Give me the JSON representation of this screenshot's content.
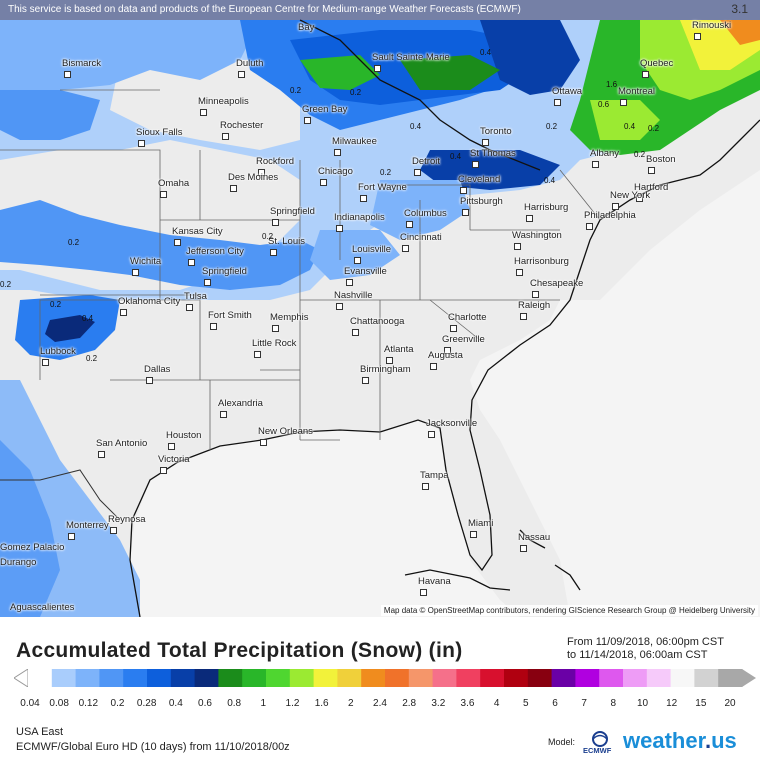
{
  "banner": "This service is based on data and products of the European Centre for Medium-range Weather Forecasts (ECMWF)",
  "attribution": "Map data © OpenStreetMap contributors, rendering GIScience Research Group @ Heidelberg University",
  "top_value": "3.1",
  "cities": [
    {
      "name": "Bay",
      "dot": false
    },
    {
      "name": "Rimouski",
      "dot": true
    },
    {
      "name": "Bismarck",
      "dot": true
    },
    {
      "name": "Duluth",
      "dot": true
    },
    {
      "name": "Sault Sainte Marie",
      "dot": true
    },
    {
      "name": "Quebec",
      "dot": true
    },
    {
      "name": "Ottawa",
      "dot": true
    },
    {
      "name": "Montreal",
      "dot": true
    },
    {
      "name": "Minneapolis",
      "dot": true
    },
    {
      "name": "Green Bay",
      "dot": true
    },
    {
      "name": "Rochester",
      "dot": true
    },
    {
      "name": "Sioux Falls",
      "dot": true
    },
    {
      "name": "Milwaukee",
      "dot": true
    },
    {
      "name": "Toronto",
      "dot": true
    },
    {
      "name": "St Thomas",
      "dot": true
    },
    {
      "name": "Albany",
      "dot": true
    },
    {
      "name": "Boston",
      "dot": true
    },
    {
      "name": "Rockford",
      "dot": true
    },
    {
      "name": "Detroit",
      "dot": true
    },
    {
      "name": "Des Moines",
      "dot": true
    },
    {
      "name": "Chicago",
      "dot": true
    },
    {
      "name": "Omaha",
      "dot": true
    },
    {
      "name": "Cleveland",
      "dot": true
    },
    {
      "name": "Hartford",
      "dot": true
    },
    {
      "name": "Fort Wayne",
      "dot": true
    },
    {
      "name": "New York",
      "dot": true
    },
    {
      "name": "Pittsburgh",
      "dot": true
    },
    {
      "name": "Harrisburg",
      "dot": true
    },
    {
      "name": "Philadelphia",
      "dot": true
    },
    {
      "name": "Springfield",
      "dot": true
    },
    {
      "name": "Indianapolis",
      "dot": true
    },
    {
      "name": "Columbus",
      "dot": true
    },
    {
      "name": "Kansas City",
      "dot": true
    },
    {
      "name": "Washington",
      "dot": true
    },
    {
      "name": "Jefferson City",
      "dot": true
    },
    {
      "name": "St. Louis",
      "dot": true
    },
    {
      "name": "Cincinnati",
      "dot": true
    },
    {
      "name": "Louisville",
      "dot": true
    },
    {
      "name": "Wichita",
      "dot": true
    },
    {
      "name": "Harrisonburg",
      "dot": true
    },
    {
      "name": "Evansville",
      "dot": true
    },
    {
      "name": "Springfield",
      "dot": true
    },
    {
      "name": "Chesapeake",
      "dot": true
    },
    {
      "name": "Nashville",
      "dot": true
    },
    {
      "name": "Tulsa",
      "dot": true
    },
    {
      "name": "Oklahoma City",
      "dot": true
    },
    {
      "name": "Raleigh",
      "dot": true
    },
    {
      "name": "Fort Smith",
      "dot": true
    },
    {
      "name": "Memphis",
      "dot": true
    },
    {
      "name": "Chattanooga",
      "dot": true
    },
    {
      "name": "Charlotte",
      "dot": true
    },
    {
      "name": "Greenville",
      "dot": true
    },
    {
      "name": "Little Rock",
      "dot": true
    },
    {
      "name": "Lubbock",
      "dot": true
    },
    {
      "name": "Atlanta",
      "dot": true
    },
    {
      "name": "Augusta",
      "dot": true
    },
    {
      "name": "Birmingham",
      "dot": true
    },
    {
      "name": "Dallas",
      "dot": true
    },
    {
      "name": "Alexandria",
      "dot": true
    },
    {
      "name": "Jacksonville",
      "dot": true
    },
    {
      "name": "Houston",
      "dot": true
    },
    {
      "name": "New Orleans",
      "dot": true
    },
    {
      "name": "San Antonio",
      "dot": true
    },
    {
      "name": "Victoria",
      "dot": true
    },
    {
      "name": "Tampa",
      "dot": true
    },
    {
      "name": "Reynosa",
      "dot": true
    },
    {
      "name": "Monterrey",
      "dot": true
    },
    {
      "name": "Miami",
      "dot": true
    },
    {
      "name": "Nassau",
      "dot": true
    },
    {
      "name": "Gomez Palacio",
      "dot": false
    },
    {
      "name": "Durango",
      "dot": false
    },
    {
      "name": "Havana",
      "dot": true
    },
    {
      "name": "Aguascalientes",
      "dot": false
    }
  ],
  "amount_labels": [
    "0.2",
    "0.4",
    "1.6",
    "0.6",
    "0.2",
    "0.4",
    "0.2",
    "0.4",
    "0.4",
    "0.2",
    "0.2",
    "0.2",
    "0.2",
    "0.2",
    "0.4",
    "0.2",
    "0.2",
    "0.4",
    "0.2"
  ],
  "title": "Accumulated Total Precipitation (Snow) (in)",
  "period": {
    "from": "From 11/09/2018, 06:00pm CST",
    "to": "to 11/14/2018, 06:00am CST"
  },
  "scale": {
    "values": [
      "0.04",
      "0.08",
      "0.12",
      "0.2",
      "0.28",
      "0.4",
      "0.6",
      "0.8",
      "1",
      "1.2",
      "1.6",
      "2",
      "2.4",
      "2.8",
      "3.2",
      "3.6",
      "4",
      "5",
      "6",
      "7",
      "8",
      "10",
      "12",
      "15",
      "20"
    ],
    "colors": [
      "#ffffff",
      "#a9cdfc",
      "#7db3fa",
      "#5096f5",
      "#2a7df0",
      "#0d5fdc",
      "#083fa8",
      "#0a2a7a",
      "#1b8c1b",
      "#29b629",
      "#4fd630",
      "#9bea32",
      "#f2f23a",
      "#f0d03a",
      "#f08c1e",
      "#f0722a",
      "#f5966a",
      "#f5708a",
      "#f04060",
      "#d8102e",
      "#b00010",
      "#880010",
      "#6a00a6",
      "#b000e0",
      "#de58ee",
      "#ee9cf6",
      "#f6cafa",
      "#f7f7f7",
      "#d2d2d2",
      "#a8a8a8"
    ]
  },
  "footer": {
    "region": "USA East",
    "model": "ECMWF/Global Euro HD (10 days) from 11/10/2018/00z",
    "model_label": "Model:",
    "ecmwf": "ECMWF",
    "brand_main": "weather",
    "brand_sep": ".",
    "brand_tld": "us"
  }
}
